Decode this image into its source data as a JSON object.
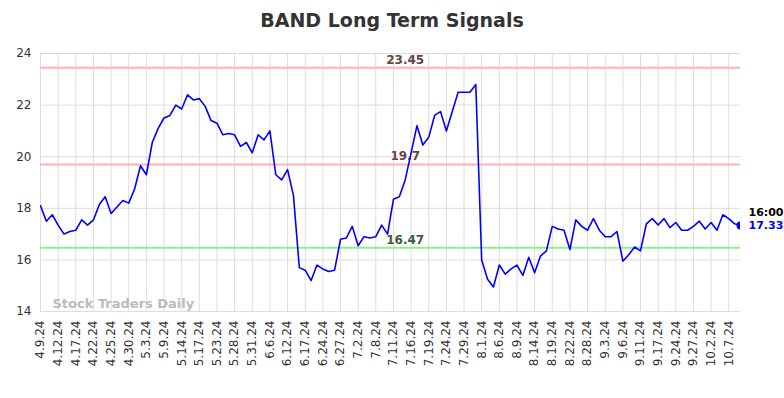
{
  "chart_data": {
    "type": "line",
    "title": "BAND Long Term Signals",
    "color": "#0000ff",
    "grid": true,
    "ylim": [
      14,
      24
    ],
    "yticks": [
      14,
      16,
      18,
      20,
      22,
      24
    ],
    "watermark": "Stock Traders Daily",
    "last_point_label": "16:00",
    "marker": "circle",
    "reference_lines": [
      {
        "value": 23.45,
        "color": "#ffb0b0"
      },
      {
        "value": 19.7,
        "color": "#ffb0b0"
      },
      {
        "value": 16.47,
        "color": "#90ee90"
      }
    ],
    "categories": [
      "4.9.24",
      null,
      null,
      "4.12.24",
      null,
      null,
      "4.17.24",
      null,
      null,
      "4.22.24",
      null,
      null,
      "4.25.24",
      null,
      null,
      "4.30.24",
      null,
      null,
      "5.3.24",
      null,
      null,
      "5.9.24",
      null,
      null,
      "5.14.24",
      null,
      null,
      "5.17.24",
      null,
      null,
      "5.23.24",
      null,
      null,
      "5.28.24",
      null,
      null,
      "5.31.24",
      null,
      null,
      "6.6.24",
      null,
      null,
      "6.12.24",
      null,
      null,
      "6.17.24",
      null,
      null,
      "6.24.24",
      null,
      null,
      "6.27.24",
      null,
      null,
      "7.2.24",
      null,
      null,
      "7.8.24",
      null,
      null,
      "7.11.24",
      null,
      null,
      "7.16.24",
      null,
      null,
      "7.19.24",
      null,
      null,
      "7.24.24",
      null,
      null,
      "7.29.24",
      null,
      null,
      "8.1.24",
      null,
      null,
      "8.6.24",
      null,
      null,
      "8.9.24",
      null,
      null,
      "8.14.24",
      null,
      null,
      "8.19.24",
      null,
      null,
      "8.22.24",
      null,
      null,
      "8.28.24",
      null,
      null,
      "9.3.24",
      null,
      null,
      "9.6.24",
      null,
      null,
      "9.11.24",
      null,
      null,
      "9.17.24",
      null,
      null,
      "9.24.24",
      null,
      null,
      "9.27.24",
      null,
      null,
      "10.2.24",
      null,
      null,
      "10.7.24",
      null,
      null
    ],
    "values": [
      18.1,
      17.5,
      17.75,
      17.35,
      17.0,
      17.1,
      17.15,
      17.55,
      17.35,
      17.55,
      18.15,
      18.45,
      17.8,
      18.05,
      18.3,
      18.2,
      18.75,
      19.65,
      19.3,
      20.55,
      21.1,
      21.5,
      21.6,
      22.0,
      21.85,
      22.4,
      22.2,
      22.25,
      21.95,
      21.4,
      21.3,
      20.85,
      20.9,
      20.85,
      20.4,
      20.55,
      20.15,
      20.85,
      20.65,
      21.0,
      19.3,
      19.1,
      19.5,
      18.5,
      15.7,
      15.6,
      15.2,
      15.8,
      15.65,
      15.55,
      15.6,
      16.8,
      16.85,
      17.3,
      16.55,
      16.9,
      16.85,
      16.9,
      17.35,
      17.0,
      18.35,
      18.45,
      19.1,
      20.15,
      21.2,
      20.45,
      20.75,
      21.6,
      21.75,
      21.0,
      21.75,
      22.5,
      22.5,
      22.5,
      22.8,
      16.0,
      15.25,
      14.95,
      15.8,
      15.45,
      15.65,
      15.8,
      15.4,
      16.1,
      15.5,
      16.15,
      16.35,
      17.3,
      17.2,
      17.15,
      16.4,
      17.55,
      17.3,
      17.15,
      17.6,
      17.15,
      16.9,
      16.9,
      17.1,
      15.95,
      16.2,
      16.5,
      16.35,
      17.4,
      17.6,
      17.35,
      17.6,
      17.25,
      17.45,
      17.15,
      17.15,
      17.3,
      17.5,
      17.2,
      17.45,
      17.15,
      17.75,
      17.6,
      17.4,
      17.33
    ]
  }
}
